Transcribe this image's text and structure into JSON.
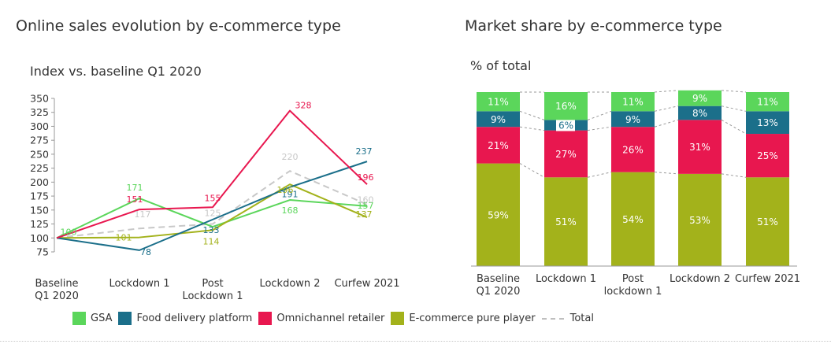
{
  "chart_data": [
    {
      "type": "line",
      "title": "Online sales evolution by e-commerce type",
      "subtitle": "Index vs. baseline Q1 2020",
      "categories": [
        [
          "Baseline",
          "Q1 2020"
        ],
        [
          "Lockdown 1"
        ],
        [
          "Post",
          "Lockdown 1"
        ],
        [
          "Lockdown 2"
        ],
        [
          "Curfew 2021"
        ]
      ],
      "yticks": [
        75,
        100,
        125,
        150,
        175,
        200,
        225,
        250,
        275,
        300,
        325,
        350
      ],
      "ylim": [
        75,
        350
      ],
      "series": [
        {
          "name": "GSA",
          "color": "#5bd65b",
          "values": [
            100,
            171,
            120,
            168,
            157
          ],
          "labels": [
            "100",
            "171",
            "",
            "168",
            "157"
          ]
        },
        {
          "name": "Food delivery platform",
          "color": "#1b6f8a",
          "values": [
            100,
            78,
            133,
            191,
            237
          ],
          "labels": [
            "",
            "78",
            "133",
            "191",
            "237"
          ]
        },
        {
          "name": "Omnichannel retailer",
          "color": "#e8174f",
          "values": [
            100,
            151,
            155,
            328,
            196
          ],
          "labels": [
            "",
            "151",
            "155",
            "328",
            "196"
          ]
        },
        {
          "name": "E-commerce pure player",
          "color": "#a3b21b",
          "values": [
            100,
            101,
            114,
            196,
            137
          ],
          "labels": [
            "",
            "101",
            "114",
            "196",
            "137"
          ]
        },
        {
          "name": "Total",
          "color": "#c8c8c8",
          "dashed": true,
          "values": [
            100,
            117,
            125,
            220,
            160
          ],
          "labels": [
            "",
            "117",
            "125",
            "220",
            "160"
          ]
        }
      ]
    },
    {
      "type": "bar",
      "stacked": true,
      "title": "Market share by e-commerce type",
      "subtitle": "% of total",
      "categories": [
        [
          "Baseline",
          "Q1 2020"
        ],
        [
          "Lockdown 1"
        ],
        [
          "Post",
          "lockdown 1"
        ],
        [
          "Lockdown 2"
        ],
        [
          "Curfew 2021"
        ]
      ],
      "series": [
        {
          "name": "E-commerce pure player",
          "color": "#a3b21b",
          "values": [
            59,
            51,
            54,
            53,
            51
          ]
        },
        {
          "name": "Omnichannel retailer",
          "color": "#e8174f",
          "values": [
            21,
            27,
            26,
            31,
            25
          ]
        },
        {
          "name": "Food delivery platform",
          "color": "#1b6f8a",
          "values": [
            9,
            6,
            9,
            8,
            13
          ]
        },
        {
          "name": "GSA",
          "color": "#5bd65b",
          "values": [
            11,
            16,
            11,
            9,
            11
          ]
        }
      ]
    }
  ],
  "legend": [
    {
      "label": "GSA",
      "color": "#5bd65b"
    },
    {
      "label": "Food delivery platform",
      "color": "#1b6f8a"
    },
    {
      "label": "Omnichannel retailer",
      "color": "#e8174f"
    },
    {
      "label": "E-commerce pure player",
      "color": "#a3b21b"
    },
    {
      "label": "Total",
      "color": "#bfbfbf",
      "dashed": true
    }
  ]
}
